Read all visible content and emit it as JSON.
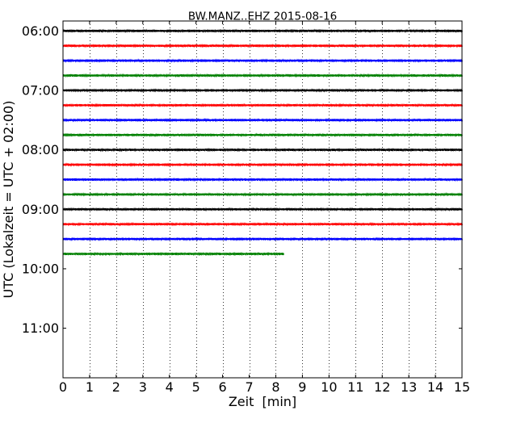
{
  "chart_data": {
    "type": "line",
    "title": "BW.MANZ..EHZ 2015-08-16",
    "xlabel": "Zeit  [min]",
    "ylabel": "UTC (Lokalzeit = UTC + 02:00)",
    "xlim": [
      0,
      15
    ],
    "x_ticks": [
      "0",
      "1",
      "2",
      "3",
      "4",
      "5",
      "6",
      "7",
      "8",
      "9",
      "10",
      "11",
      "12",
      "13",
      "14",
      "15"
    ],
    "y_ticks": [
      "06:00",
      "07:00",
      "08:00",
      "09:00",
      "10:00",
      "11:00"
    ],
    "y_tick_times": [
      "06:00",
      "07:00",
      "08:00",
      "09:00",
      "10:00",
      "11:00"
    ],
    "ylim": [
      "05:50",
      "11:50"
    ],
    "y_inverted": true,
    "grid": "vertical dotted",
    "colors": [
      "#000000",
      "#ff0000",
      "#0000ff",
      "#008000"
    ],
    "series": [
      {
        "start": "06:00",
        "x": [
          0,
          15
        ],
        "color": "#000000"
      },
      {
        "start": "06:15",
        "x": [
          0,
          15
        ],
        "color": "#ff0000"
      },
      {
        "start": "06:30",
        "x": [
          0,
          15
        ],
        "color": "#0000ff"
      },
      {
        "start": "06:45",
        "x": [
          0,
          15
        ],
        "color": "#008000"
      },
      {
        "start": "07:00",
        "x": [
          0,
          15
        ],
        "color": "#000000"
      },
      {
        "start": "07:15",
        "x": [
          0,
          15
        ],
        "color": "#ff0000"
      },
      {
        "start": "07:30",
        "x": [
          0,
          15
        ],
        "color": "#0000ff"
      },
      {
        "start": "07:45",
        "x": [
          0,
          15
        ],
        "color": "#008000"
      },
      {
        "start": "08:00",
        "x": [
          0,
          15
        ],
        "color": "#000000"
      },
      {
        "start": "08:15",
        "x": [
          0,
          15
        ],
        "color": "#ff0000"
      },
      {
        "start": "08:30",
        "x": [
          0,
          15
        ],
        "color": "#0000ff"
      },
      {
        "start": "08:45",
        "x": [
          0,
          15
        ],
        "color": "#008000"
      },
      {
        "start": "09:00",
        "x": [
          0,
          15
        ],
        "color": "#000000"
      },
      {
        "start": "09:15",
        "x": [
          0,
          15
        ],
        "color": "#ff0000"
      },
      {
        "start": "09:30",
        "x": [
          0,
          15
        ],
        "color": "#0000ff"
      },
      {
        "start": "09:45",
        "x": [
          0,
          8.3
        ],
        "color": "#008000"
      }
    ]
  }
}
